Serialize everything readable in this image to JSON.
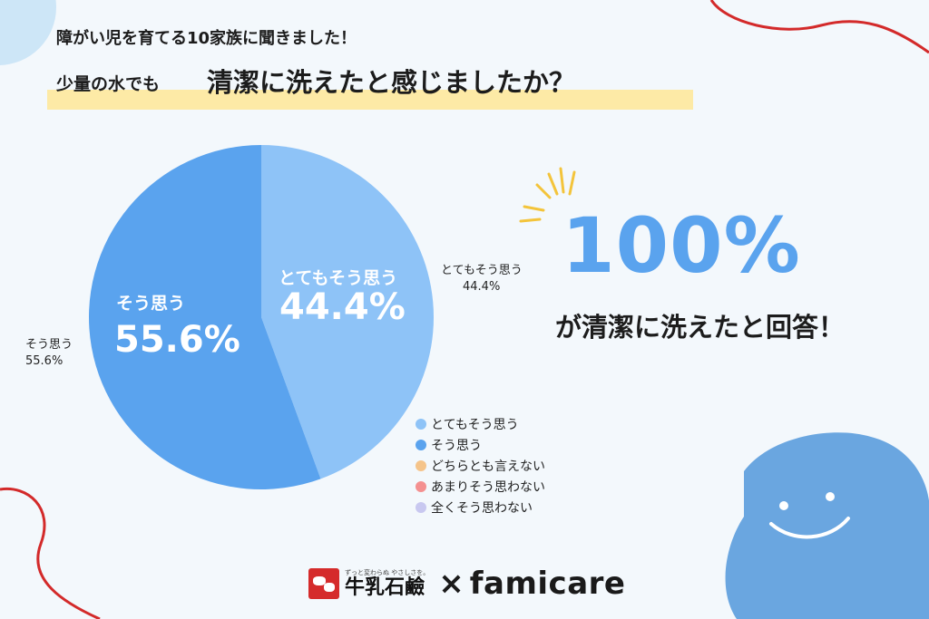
{
  "header": {
    "subtitle": "障がい児を育てる10家族に聞きました！",
    "question_prefix": "少量の水でも",
    "question_main": "清潔に洗えたと感じましたか？"
  },
  "highlight": {
    "value": "100%",
    "caption": "が清潔に洗えたと回答！"
  },
  "colors": {
    "accent_blue": "#5aa3ee",
    "background": "#f3f8fc",
    "highlighter": "#fdeaa6",
    "deco_red": "#d32a2a",
    "blob": "#6aa6e0"
  },
  "chart_data": {
    "type": "pie",
    "slices": [
      {
        "label": "とてもそう思う",
        "value": 44.4,
        "display": "44.4%",
        "color": "#8ec3f7"
      },
      {
        "label": "そう思う",
        "value": 55.6,
        "display": "55.6%",
        "color": "#5aa3ee"
      },
      {
        "label": "どちらとも言えない",
        "value": 0,
        "display": "",
        "color": "#f5c48a"
      },
      {
        "label": "あまりそう思わない",
        "value": 0,
        "display": "",
        "color": "#f49090"
      },
      {
        "label": "全くそう思わない",
        "value": 0,
        "display": "",
        "color": "#c8c8f0"
      }
    ],
    "legend_position": "bottom-right"
  },
  "footer": {
    "brand1_tagline": "ずっと変わらぬ やさしさを。",
    "brand1": "牛乳石鹼",
    "times": "×",
    "brand2": "famicare"
  }
}
